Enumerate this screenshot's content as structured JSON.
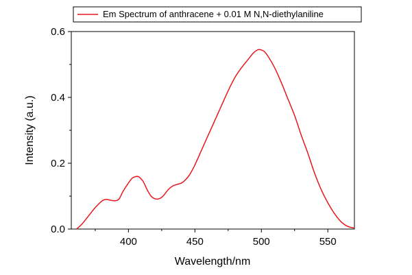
{
  "chart_data": {
    "type": "line",
    "xlabel": "Wavelength/nm",
    "ylabel": "Intensity (a.u.)",
    "xlim": [
      357,
      570
    ],
    "ylim": [
      0,
      0.6
    ],
    "x_ticks": [
      400,
      450,
      500,
      550
    ],
    "x_minor_ticks": [
      375,
      425,
      475,
      525
    ],
    "y_ticks": [
      0.0,
      0.2,
      0.4,
      0.6
    ],
    "y_tick_labels": [
      "0.0",
      "0.2",
      "0.4",
      "0.6"
    ],
    "y_minor_ticks": [
      0.1,
      0.3,
      0.5
    ],
    "grid": false,
    "legend": {
      "position": "top",
      "entries": [
        "Em Spectrum of anthracene + 0.01 M N,N-diethylaniline"
      ]
    },
    "series": [
      {
        "name": "Em Spectrum of anthracene + 0.01 M N,N-diethylaniline",
        "color": "#e8161b",
        "x": [
          361,
          365,
          370,
          375,
          380,
          383,
          386,
          390,
          393,
          396,
          400,
          403,
          406,
          408,
          411,
          414,
          417,
          420,
          423,
          426,
          430,
          433,
          436,
          440,
          443,
          446,
          450,
          455,
          460,
          465,
          470,
          475,
          480,
          485,
          490,
          494,
          497,
          499,
          502,
          505,
          510,
          515,
          520,
          525,
          530,
          535,
          540,
          545,
          550,
          555,
          560,
          565,
          570
        ],
        "y": [
          0.0,
          0.015,
          0.04,
          0.065,
          0.085,
          0.09,
          0.088,
          0.086,
          0.092,
          0.115,
          0.14,
          0.155,
          0.16,
          0.158,
          0.145,
          0.12,
          0.1,
          0.092,
          0.092,
          0.1,
          0.12,
          0.13,
          0.135,
          0.14,
          0.15,
          0.165,
          0.195,
          0.24,
          0.285,
          0.33,
          0.375,
          0.42,
          0.46,
          0.49,
          0.515,
          0.535,
          0.544,
          0.545,
          0.54,
          0.525,
          0.49,
          0.445,
          0.395,
          0.345,
          0.285,
          0.23,
          0.17,
          0.12,
          0.08,
          0.047,
          0.022,
          0.008,
          0.003
        ]
      }
    ]
  }
}
